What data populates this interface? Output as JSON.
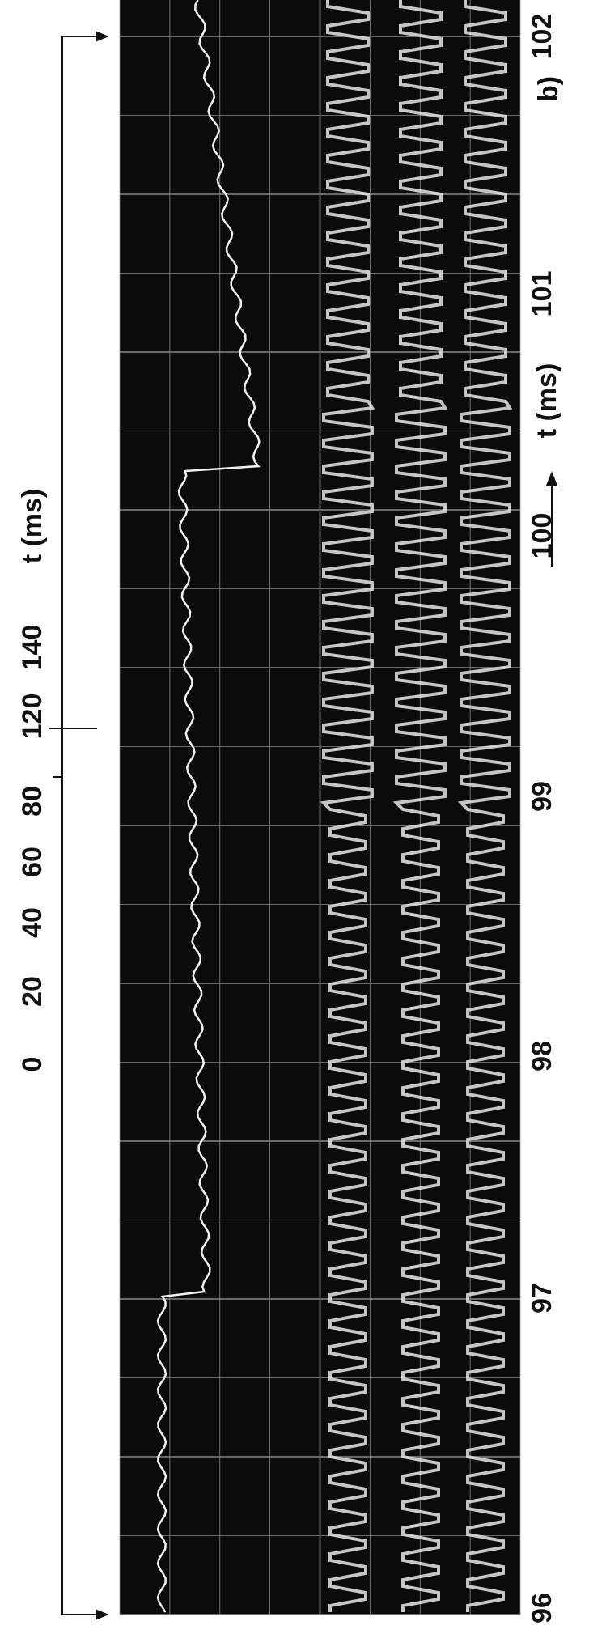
{
  "panel_label": "b)",
  "top_axis": {
    "ticks": [
      "0",
      "20",
      "40",
      "60",
      "80",
      "120",
      "140"
    ],
    "unit": "t (ms)"
  },
  "bottom_axis": {
    "ticks": [
      "96",
      "97",
      "98",
      "99",
      "100",
      "101",
      "102"
    ],
    "unit": "t (ms)"
  }
}
